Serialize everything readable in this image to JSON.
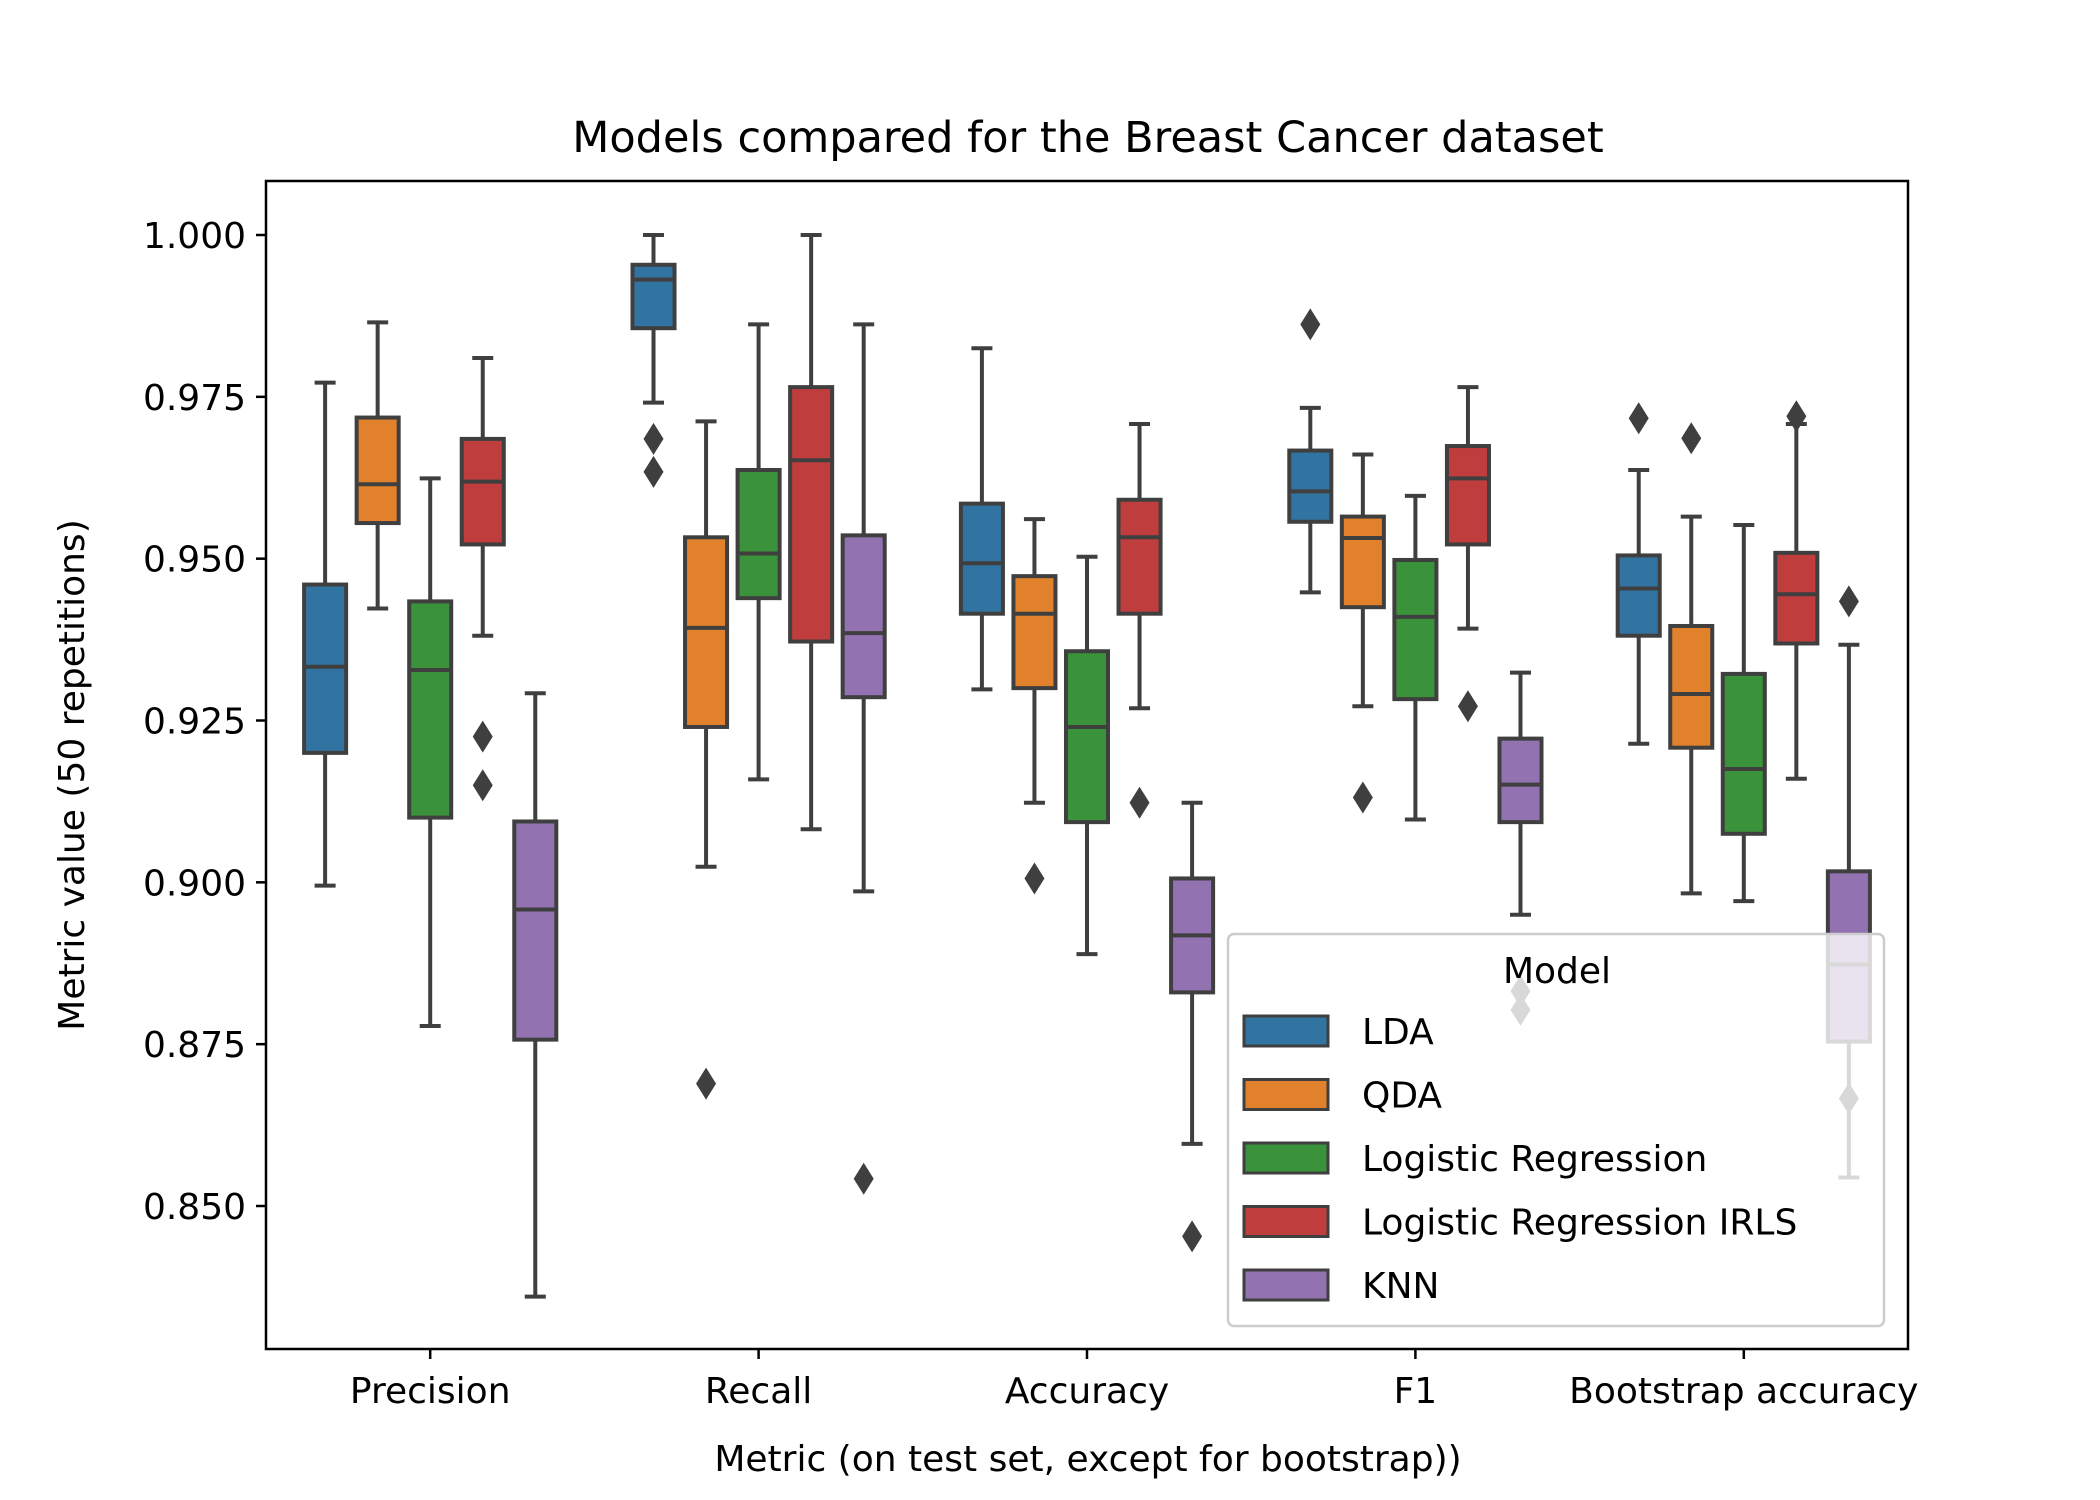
{
  "chart_data": {
    "type": "boxplot",
    "title": "Models compared for the Breast Cancer dataset",
    "xlabel": "Metric (on test set, except for bootstrap))",
    "ylabel": "Metric value (50 repetitions)",
    "ylim": [
      0.829,
      1.008
    ],
    "yticks": [
      0.85,
      0.875,
      0.9,
      0.925,
      0.95,
      0.975,
      1.0
    ],
    "ytick_labels": [
      "0.850",
      "0.875",
      "0.900",
      "0.925",
      "0.950",
      "0.975",
      "1.000"
    ],
    "categories": [
      "Precision",
      "Recall",
      "Accuracy",
      "F1",
      "Bootstrap accuracy"
    ],
    "grid": false,
    "legend": {
      "title": "Model",
      "position": "lower-right"
    },
    "series": [
      {
        "name": "LDA",
        "color": "#3274a1",
        "boxes": [
          {
            "whislo": 0.8995,
            "q1": 0.92,
            "med": 0.9333,
            "q3": 0.946,
            "whishi": 0.9772,
            "fliers": []
          },
          {
            "whislo": 0.9741,
            "q1": 0.9856,
            "med": 0.9931,
            "q3": 0.9954,
            "whishi": 1.0,
            "fliers": [
              0.9634,
              0.9685
            ]
          },
          {
            "whislo": 0.9298,
            "q1": 0.9415,
            "med": 0.9493,
            "q3": 0.9585,
            "whishi": 0.9825,
            "fliers": []
          },
          {
            "whislo": 0.9448,
            "q1": 0.9557,
            "med": 0.9604,
            "q3": 0.9667,
            "whishi": 0.9733,
            "fliers": [
              0.9862
            ]
          },
          {
            "whislo": 0.9214,
            "q1": 0.9381,
            "med": 0.9454,
            "q3": 0.9505,
            "whishi": 0.9637,
            "fliers": [
              0.9717
            ]
          }
        ]
      },
      {
        "name": "QDA",
        "color": "#e1812c",
        "boxes": [
          {
            "whislo": 0.9423,
            "q1": 0.9555,
            "med": 0.9615,
            "q3": 0.9718,
            "whishi": 0.9865,
            "fliers": []
          },
          {
            "whislo": 0.9024,
            "q1": 0.924,
            "med": 0.9393,
            "q3": 0.9533,
            "whishi": 0.9712,
            "fliers": [
              0.8689
            ]
          },
          {
            "whislo": 0.9123,
            "q1": 0.93,
            "med": 0.9415,
            "q3": 0.9473,
            "whishi": 0.9561,
            "fliers": [
              0.9006
            ]
          },
          {
            "whislo": 0.9272,
            "q1": 0.9425,
            "med": 0.9532,
            "q3": 0.9565,
            "whishi": 0.9661,
            "fliers": [
              0.9131
            ]
          },
          {
            "whislo": 0.8983,
            "q1": 0.9208,
            "med": 0.9291,
            "q3": 0.9396,
            "whishi": 0.9565,
            "fliers": [
              0.9686
            ]
          }
        ]
      },
      {
        "name": "Logistic Regression",
        "color": "#3a923a",
        "boxes": [
          {
            "whislo": 0.8778,
            "q1": 0.91,
            "med": 0.9328,
            "q3": 0.9434,
            "whishi": 0.9624,
            "fliers": []
          },
          {
            "whislo": 0.9159,
            "q1": 0.9439,
            "med": 0.9508,
            "q3": 0.9637,
            "whishi": 0.9862,
            "fliers": []
          },
          {
            "whislo": 0.8889,
            "q1": 0.9093,
            "med": 0.924,
            "q3": 0.9357,
            "whishi": 0.9503,
            "fliers": []
          },
          {
            "whislo": 0.9097,
            "q1": 0.9283,
            "med": 0.941,
            "q3": 0.9498,
            "whishi": 0.9597,
            "fliers": []
          },
          {
            "whislo": 0.8971,
            "q1": 0.9075,
            "med": 0.9175,
            "q3": 0.9322,
            "whishi": 0.9552,
            "fliers": []
          }
        ]
      },
      {
        "name": "Logistic Regression IRLS",
        "color": "#c03d3e",
        "boxes": [
          {
            "whislo": 0.9381,
            "q1": 0.9522,
            "med": 0.9619,
            "q3": 0.9685,
            "whishi": 0.981,
            "fliers": [
              0.915,
              0.9225
            ]
          },
          {
            "whislo": 0.9082,
            "q1": 0.9372,
            "med": 0.9652,
            "q3": 0.9765,
            "whishi": 1.0,
            "fliers": []
          },
          {
            "whislo": 0.9269,
            "q1": 0.9415,
            "med": 0.9533,
            "q3": 0.9591,
            "whishi": 0.9708,
            "fliers": [
              0.9123
            ]
          },
          {
            "whislo": 0.9392,
            "q1": 0.9522,
            "med": 0.9624,
            "q3": 0.9674,
            "whishi": 0.9765,
            "fliers": [
              0.9272
            ]
          },
          {
            "whislo": 0.916,
            "q1": 0.9369,
            "med": 0.9445,
            "q3": 0.9509,
            "whishi": 0.9708,
            "fliers": [
              0.972
            ]
          }
        ]
      },
      {
        "name": "KNN",
        "color": "#9372b2",
        "boxes": [
          {
            "whislo": 0.836,
            "q1": 0.8757,
            "med": 0.8958,
            "q3": 0.9094,
            "whishi": 0.9292,
            "fliers": []
          },
          {
            "whislo": 0.8986,
            "q1": 0.9286,
            "med": 0.9385,
            "q3": 0.9536,
            "whishi": 0.9862,
            "fliers": [
              0.8542
            ]
          },
          {
            "whislo": 0.8596,
            "q1": 0.883,
            "med": 0.8918,
            "q3": 0.9006,
            "whishi": 0.9123,
            "fliers": [
              0.8453
            ]
          },
          {
            "whislo": 0.895,
            "q1": 0.9093,
            "med": 0.9151,
            "q3": 0.9222,
            "whishi": 0.9324,
            "fliers": [
              0.8803,
              0.8832
            ]
          },
          {
            "whislo": 0.8544,
            "q1": 0.8754,
            "med": 0.8873,
            "q3": 0.9017,
            "whishi": 0.9367,
            "fliers": [
              0.8666,
              0.9434
            ]
          }
        ]
      }
    ]
  }
}
